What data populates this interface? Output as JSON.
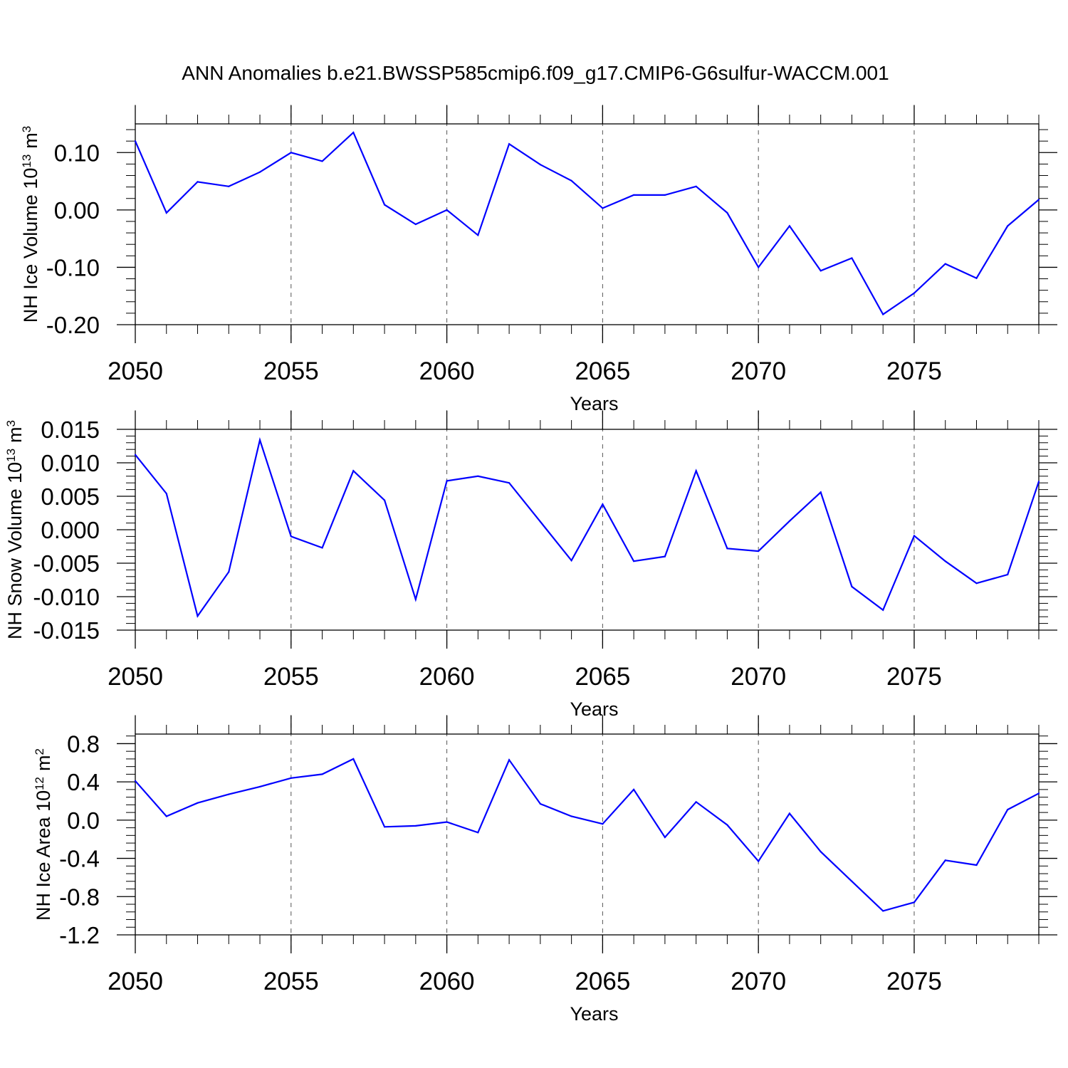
{
  "title": "ANN Anomalies b.e21.BWSSP585cmip6.f09_g17.CMIP6-G6sulfur-WACCM.001",
  "line_color": "#0000ff",
  "chart_data": [
    {
      "type": "line",
      "xlabel": "Years",
      "ylabel": "NH Ice Volume 10",
      "ylabel_sup": "13",
      "ylabel_unit": "m",
      "ylabel_unit_sup": "3",
      "xlim": [
        2050,
        2079
      ],
      "ylim": [
        -0.2,
        0.15
      ],
      "xticks": [
        2050,
        2055,
        2060,
        2065,
        2070,
        2075
      ],
      "xtick_labels": [
        "2050",
        "2055",
        "2060",
        "2065",
        "2070",
        "2075"
      ],
      "yticks": [
        0.1,
        0.0,
        -0.1,
        -0.2
      ],
      "ytick_labels": [
        "0.10",
        "0.00",
        "-0.10",
        "-0.20"
      ],
      "x": [
        2050,
        2051,
        2052,
        2053,
        2054,
        2055,
        2056,
        2057,
        2058,
        2059,
        2060,
        2061,
        2062,
        2063,
        2064,
        2065,
        2066,
        2067,
        2068,
        2069,
        2070,
        2071,
        2072,
        2073,
        2074,
        2075,
        2076,
        2077,
        2078,
        2079
      ],
      "values": [
        0.12,
        -0.005,
        0.049,
        0.041,
        0.066,
        0.1,
        0.085,
        0.135,
        0.009,
        -0.025,
        0.0,
        -0.044,
        0.115,
        0.079,
        0.051,
        0.003,
        0.026,
        0.026,
        0.041,
        -0.005,
        -0.1,
        -0.028,
        -0.106,
        -0.084,
        -0.182,
        -0.145,
        -0.094,
        -0.119,
        -0.028,
        0.018
      ]
    },
    {
      "type": "line",
      "xlabel": "Years",
      "ylabel": "NH Snow Volume 10",
      "ylabel_sup": "13",
      "ylabel_unit": "m",
      "ylabel_unit_sup": "3",
      "xlim": [
        2050,
        2079
      ],
      "ylim": [
        -0.015,
        0.015
      ],
      "xticks": [
        2050,
        2055,
        2060,
        2065,
        2070,
        2075
      ],
      "xtick_labels": [
        "2050",
        "2055",
        "2060",
        "2065",
        "2070",
        "2075"
      ],
      "yticks": [
        0.015,
        0.01,
        0.005,
        0.0,
        -0.005,
        -0.01,
        -0.015
      ],
      "ytick_labels": [
        "0.015",
        "0.010",
        "0.005",
        "0.000",
        "-0.005",
        "-0.010",
        "-0.015"
      ],
      "x": [
        2050,
        2051,
        2052,
        2053,
        2054,
        2055,
        2056,
        2057,
        2058,
        2059,
        2060,
        2061,
        2062,
        2063,
        2064,
        2065,
        2066,
        2067,
        2068,
        2069,
        2070,
        2071,
        2072,
        2073,
        2074,
        2075,
        2076,
        2077,
        2078,
        2079
      ],
      "values": [
        0.0112,
        0.0054,
        -0.0129,
        -0.0063,
        0.0134,
        -0.001,
        -0.0027,
        0.0088,
        0.0044,
        -0.0104,
        0.0073,
        0.008,
        0.007,
        0.0012,
        -0.0046,
        0.0038,
        -0.0047,
        -0.004,
        0.0088,
        -0.0028,
        -0.0032,
        0.0013,
        0.0056,
        -0.0085,
        -0.012,
        -0.0009,
        -0.0047,
        -0.008,
        -0.0067,
        0.0072
      ]
    },
    {
      "type": "line",
      "xlabel": "Years",
      "ylabel": "NH Ice Area 10",
      "ylabel_sup": "12",
      "ylabel_unit": "m",
      "ylabel_unit_sup": "2",
      "xlim": [
        2050,
        2079
      ],
      "ylim": [
        -1.2,
        0.9
      ],
      "xticks": [
        2050,
        2055,
        2060,
        2065,
        2070,
        2075
      ],
      "xtick_labels": [
        "2050",
        "2055",
        "2060",
        "2065",
        "2070",
        "2075"
      ],
      "yticks": [
        0.8,
        0.4,
        0.0,
        -0.4,
        -0.8,
        -1.2
      ],
      "ytick_labels": [
        "0.8",
        "0.4",
        "0.0",
        "-0.4",
        "-0.8",
        "-1.2"
      ],
      "x": [
        2050,
        2051,
        2052,
        2053,
        2054,
        2055,
        2056,
        2057,
        2058,
        2059,
        2060,
        2061,
        2062,
        2063,
        2064,
        2065,
        2066,
        2067,
        2068,
        2069,
        2070,
        2071,
        2072,
        2073,
        2074,
        2075,
        2076,
        2077,
        2078,
        2079
      ],
      "values": [
        0.41,
        0.04,
        0.18,
        0.27,
        0.35,
        0.44,
        0.48,
        0.64,
        -0.07,
        -0.06,
        -0.02,
        -0.13,
        0.63,
        0.17,
        0.04,
        -0.04,
        0.32,
        -0.18,
        0.19,
        -0.05,
        -0.43,
        0.07,
        -0.33,
        -0.64,
        -0.95,
        -0.86,
        -0.42,
        -0.47,
        0.11,
        0.28
      ]
    }
  ]
}
